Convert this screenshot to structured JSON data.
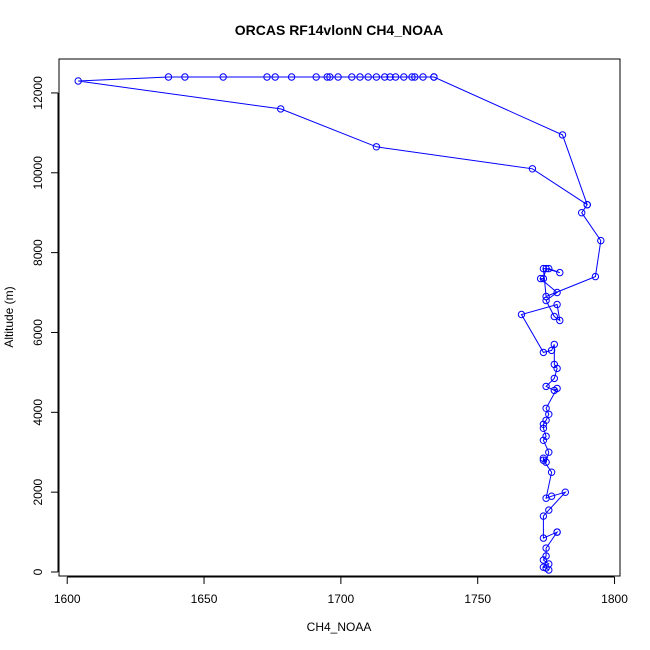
{
  "chart_data": {
    "type": "line",
    "title": "ORCAS RF14vlonN CH4_NOAA",
    "xlabel": "CH4_NOAA",
    "ylabel": "Altitude (m)",
    "xlim": [
      1597,
      1802
    ],
    "ylim": [
      -100,
      12850
    ],
    "xticks": [
      1600,
      1650,
      1700,
      1750,
      1800
    ],
    "yticks": [
      0,
      2000,
      4000,
      6000,
      8000,
      10000,
      12000
    ],
    "markers": "open-circle",
    "line_color": "#0000ff",
    "grid": false,
    "legend": "none",
    "series": [
      {
        "x": [
          1776,
          1775,
          1774,
          1776,
          1774,
          1775,
          1775,
          1779,
          1779,
          1774,
          1774,
          1776,
          1782,
          1777,
          1775,
          1777,
          1774,
          1774,
          1775,
          1776,
          1774,
          1775,
          1774,
          1774,
          1775,
          1776,
          1775,
          1779,
          1778,
          1775,
          1778,
          1779,
          1778,
          1778,
          1777,
          1774,
          1766,
          1779,
          1780,
          1778,
          1775,
          1779,
          1773,
          1774,
          1775,
          1780,
          1776,
          1774,
          1775,
          1793,
          1795,
          1788,
          1790,
          1770,
          1713,
          1678,
          1604,
          1637,
          1643,
          1657,
          1673,
          1676,
          1682,
          1691,
          1695,
          1696,
          1699,
          1704,
          1707,
          1710,
          1713,
          1716,
          1718,
          1720,
          1723,
          1726,
          1727,
          1730,
          1734,
          1734,
          1781,
          1790
        ],
        "y": [
          50,
          100,
          120,
          200,
          300,
          400,
          600,
          1000,
          1000,
          850,
          1400,
          1550,
          2000,
          1900,
          1850,
          2500,
          2800,
          2850,
          2750,
          3000,
          3300,
          3400,
          3600,
          3700,
          3800,
          3950,
          4100,
          4600,
          4550,
          4650,
          4850,
          5100,
          5200,
          5700,
          5550,
          5500,
          6450,
          6700,
          6300,
          6400,
          6800,
          7000,
          7350,
          7350,
          7600,
          7500,
          7600,
          7600,
          6900,
          7400,
          8300,
          9000,
          9200,
          10100,
          10650,
          11600,
          12300,
          12400,
          12400,
          12400,
          12400,
          12400,
          12400,
          12400,
          12400,
          12400,
          12400,
          12400,
          12400,
          12400,
          12400,
          12400,
          12400,
          12400,
          12400,
          12400,
          12400,
          12400,
          12400,
          12400,
          10950,
          9200
        ]
      }
    ]
  }
}
